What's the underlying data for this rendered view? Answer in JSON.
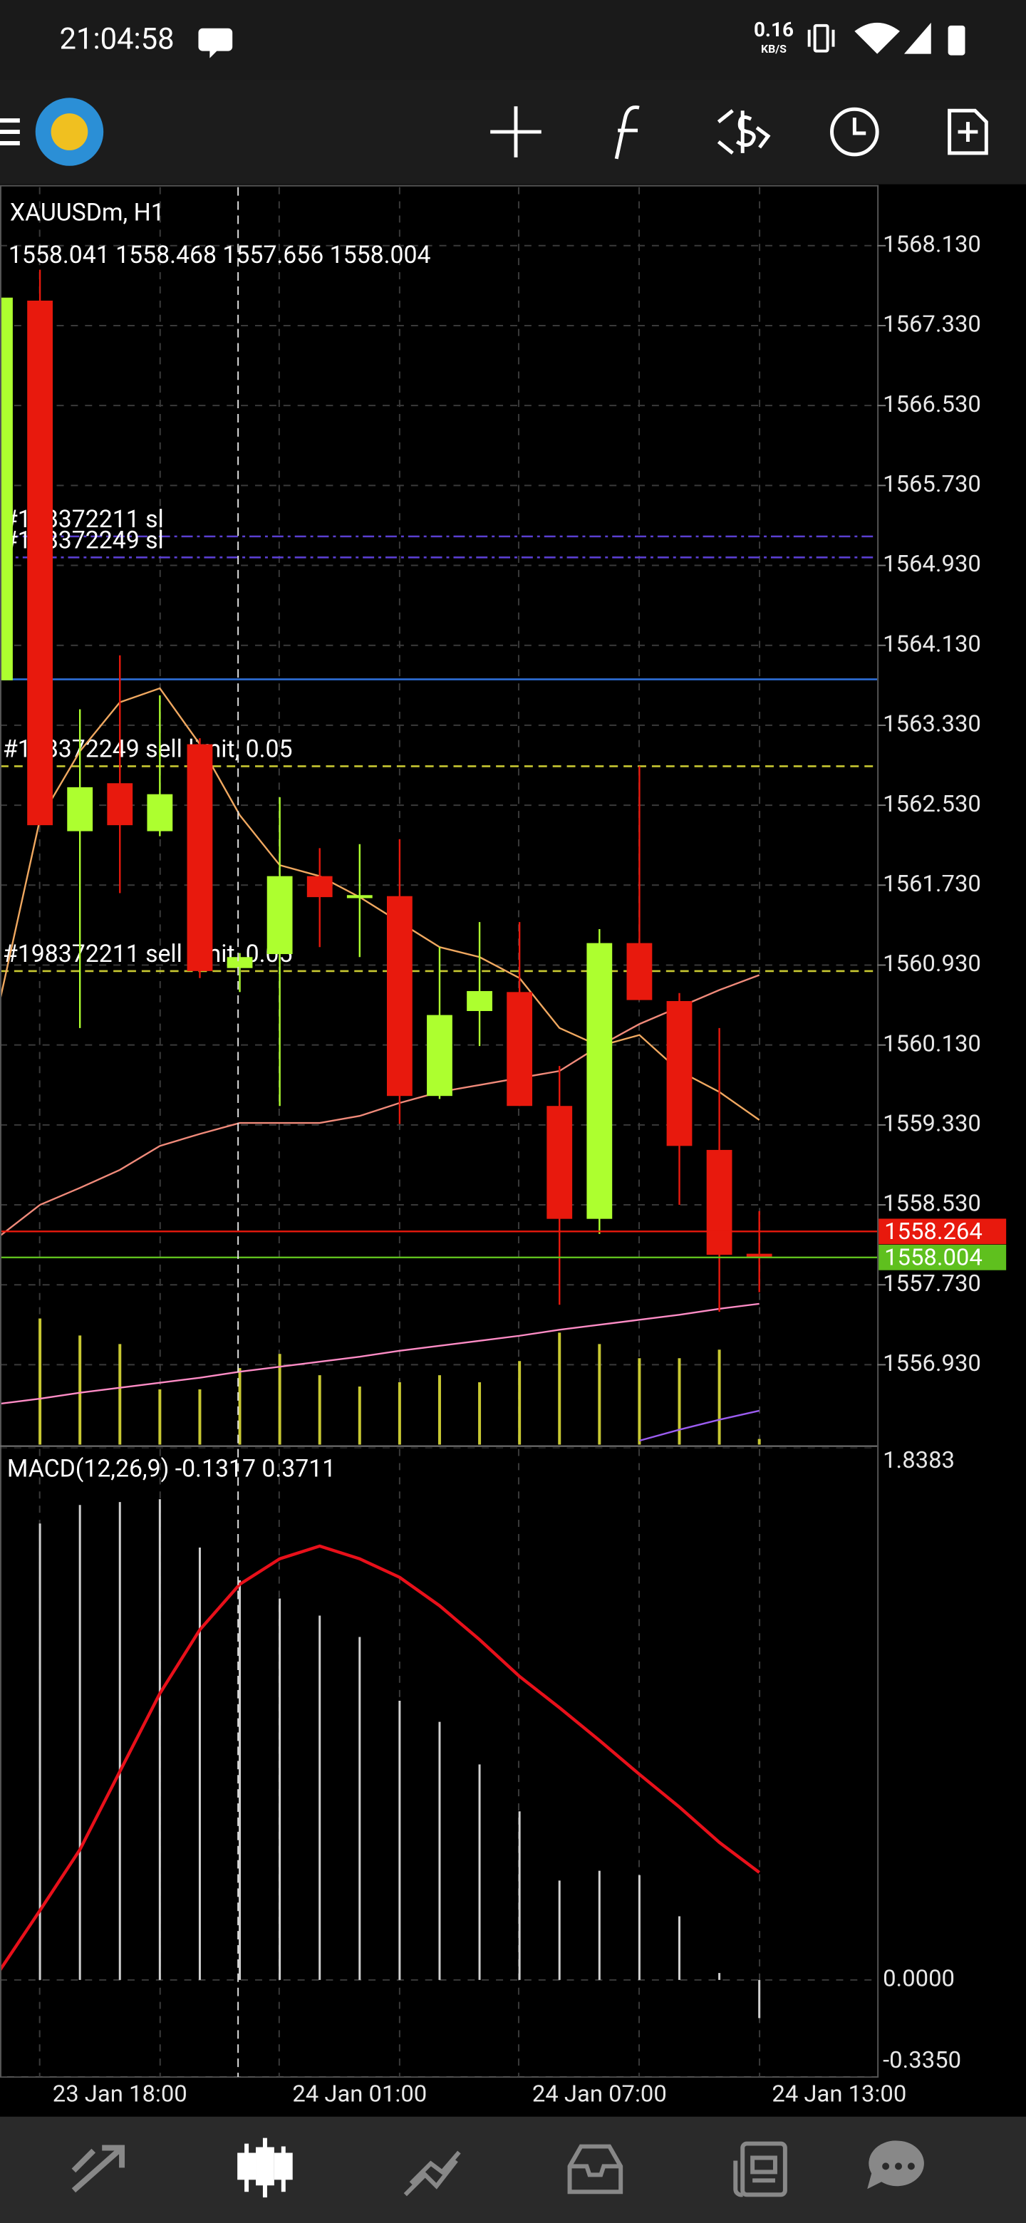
{
  "status_bar": {
    "time": "21:04:58",
    "net_speed": "0.16",
    "net_unit": "KB/S"
  },
  "chart_data": [
    {
      "type": "candlestick",
      "title": "XAUUSDm, H1",
      "open": [
        1563.78,
        1567.58,
        1562.27,
        1562.75,
        1562.27,
        1563.14,
        1560.9,
        1561.04,
        1561.82,
        1561.6,
        1561.62,
        1559.62,
        1560.47,
        1560.66,
        1559.52,
        1558.39,
        1561.15,
        1560.57,
        1559.08,
        1558.041,
        null,
        null
      ],
      "high": [
        1567.75,
        1567.89,
        1563.49,
        1564.03,
        1563.63,
        1563.2,
        1561.05,
        1562.61,
        1562.1,
        1562.14,
        1562.19,
        1561.11,
        1561.36,
        1561.36,
        1559.92,
        1561.29,
        1562.92,
        1560.65,
        1560.3,
        1558.468,
        null,
        null
      ],
      "low": [
        1563.78,
        1562.33,
        1560.3,
        1561.65,
        1562.22,
        1560.8,
        1560.66,
        1559.52,
        1561.11,
        1561.01,
        1559.34,
        1559.59,
        1560.12,
        1559.52,
        1557.53,
        1558.24,
        1560.58,
        1558.53,
        1557.46,
        1557.656,
        null,
        null
      ],
      "close": [
        1567.61,
        1562.33,
        1562.71,
        1562.33,
        1562.64,
        1560.87,
        1561.01,
        1561.82,
        1561.61,
        1561.63,
        1559.62,
        1560.43,
        1560.67,
        1559.52,
        1558.39,
        1561.15,
        1560.58,
        1559.12,
        1558.03,
        1558.004,
        null,
        null
      ],
      "up_color": "#adff2f",
      "down_color": "#e8190d",
      "ylim": [
        1556.13,
        1568.73
      ],
      "yticks": [
        {
          "value": 1568.13,
          "label": "1568.130"
        },
        {
          "value": 1567.33,
          "label": "1567.330"
        },
        {
          "value": 1566.53,
          "label": "1566.530"
        },
        {
          "value": 1565.73,
          "label": "1565.730"
        },
        {
          "value": 1564.93,
          "label": "1564.930"
        },
        {
          "value": 1564.13,
          "label": "1564.130"
        },
        {
          "value": 1563.33,
          "label": "1563.330"
        },
        {
          "value": 1562.53,
          "label": "1562.530"
        },
        {
          "value": 1561.73,
          "label": "1561.730"
        },
        {
          "value": 1560.93,
          "label": "1560.930"
        },
        {
          "value": 1560.13,
          "label": "1560.130"
        },
        {
          "value": 1559.33,
          "label": "1559.330"
        },
        {
          "value": 1558.53,
          "label": "1558.530"
        },
        {
          "value": 1557.73,
          "label": "1557.730"
        },
        {
          "value": 1556.93,
          "label": "1556.930"
        }
      ],
      "grid": true,
      "overlays": [
        {
          "color": "#f0a860",
          "values": [
            1560.58,
            1562.39,
            1563.07,
            1563.56,
            1563.7,
            1563.14,
            1562.43,
            1561.93,
            1561.82,
            1561.61,
            1561.36,
            1561.11,
            1561.01,
            1560.8,
            1560.3,
            1560.12,
            1560.23,
            1559.87,
            1559.66,
            1559.38,
            null,
            null
          ]
        },
        {
          "color": "#f08a7a",
          "values": [
            1558.22,
            1558.53,
            1558.7,
            1558.88,
            1559.12,
            1559.24,
            1559.35,
            1559.35,
            1559.35,
            1559.42,
            1559.55,
            1559.66,
            1559.73,
            1559.8,
            1559.87,
            1560.12,
            1560.34,
            1560.51,
            1560.68,
            1560.83,
            null,
            null
          ]
        },
        {
          "color": "#ff8cc6",
          "values": [
            1556.54,
            1556.59,
            1556.65,
            1556.7,
            1556.75,
            1556.8,
            1556.86,
            1556.91,
            1556.96,
            1557.01,
            1557.07,
            1557.12,
            1557.17,
            1557.22,
            1557.28,
            1557.33,
            1557.38,
            1557.43,
            1557.49,
            1557.54,
            null,
            null
          ]
        },
        {
          "color": "#9b5cf0",
          "values": [
            null,
            null,
            null,
            null,
            null,
            null,
            null,
            null,
            null,
            null,
            null,
            null,
            null,
            null,
            null,
            null,
            1556.17,
            1556.28,
            1556.38,
            1556.47,
            null,
            null
          ]
        }
      ],
      "volume": {
        "color": "#c8c832",
        "values": [
          null,
          89,
          77,
          71,
          39,
          39,
          54,
          64,
          49,
          41,
          44,
          49,
          44,
          59,
          79,
          71,
          61,
          61,
          67,
          4,
          null,
          null
        ]
      },
      "order_lines": [
        {
          "label": "#198372211 sl",
          "value": 1565.22,
          "color": "#5a3fd0",
          "dash": "8 3 2 3"
        },
        {
          "label": "#198372249 sl",
          "value": 1565.01,
          "color": "#5a3fd0",
          "dash": "8 3 2 3"
        },
        {
          "value": 1563.79,
          "color": "#2e6fd8"
        },
        {
          "label": "#198372249 sell limit, 0.05",
          "value": 1562.92,
          "color": "#c8c832",
          "dash": "6 4"
        },
        {
          "label": "#198372211 sell limit, 0.05",
          "value": 1560.87,
          "color": "#c8c832",
          "dash": "6 4"
        }
      ],
      "bid": {
        "value": 1558.264,
        "color": "#e8190d"
      },
      "last_color": "#5fc01e"
    },
    {
      "type": "macd",
      "title": "MACD(12,26,9)",
      "categories": [
        null,
        null,
        null,
        "23 Jan 18:00",
        null,
        null,
        null,
        null,
        null,
        "24 Jan 01:00",
        null,
        null,
        null,
        null,
        null,
        "24 Jan 07:00",
        null,
        null,
        null,
        null,
        null,
        "24 Jan 13:00"
      ],
      "histogram": {
        "color": "#d0d0d0",
        "values": [
          null,
          1.576,
          1.64,
          1.65,
          1.66,
          1.493,
          1.38,
          1.317,
          1.258,
          1.184,
          0.964,
          0.891,
          0.744,
          0.582,
          0.343,
          0.377,
          0.362,
          0.22,
          0.024,
          -0.1317,
          null,
          null
        ]
      },
      "signal": {
        "color": "#e8101a",
        "values": [
          0.034,
          0.24,
          0.45,
          0.72,
          0.989,
          1.209,
          1.366,
          1.454,
          1.498,
          1.454,
          1.39,
          1.292,
          1.175,
          1.048,
          0.94,
          0.827,
          0.71,
          0.597,
          0.475,
          0.3711,
          null,
          null
        ]
      },
      "ylim": [
        -0.335,
        1.8383
      ],
      "yticks": [
        1.8383,
        {
          "value": 0,
          "label": "0.0000"
        },
        {
          "value": -0.335,
          "label": "-0.3350"
        }
      ]
    }
  ]
}
